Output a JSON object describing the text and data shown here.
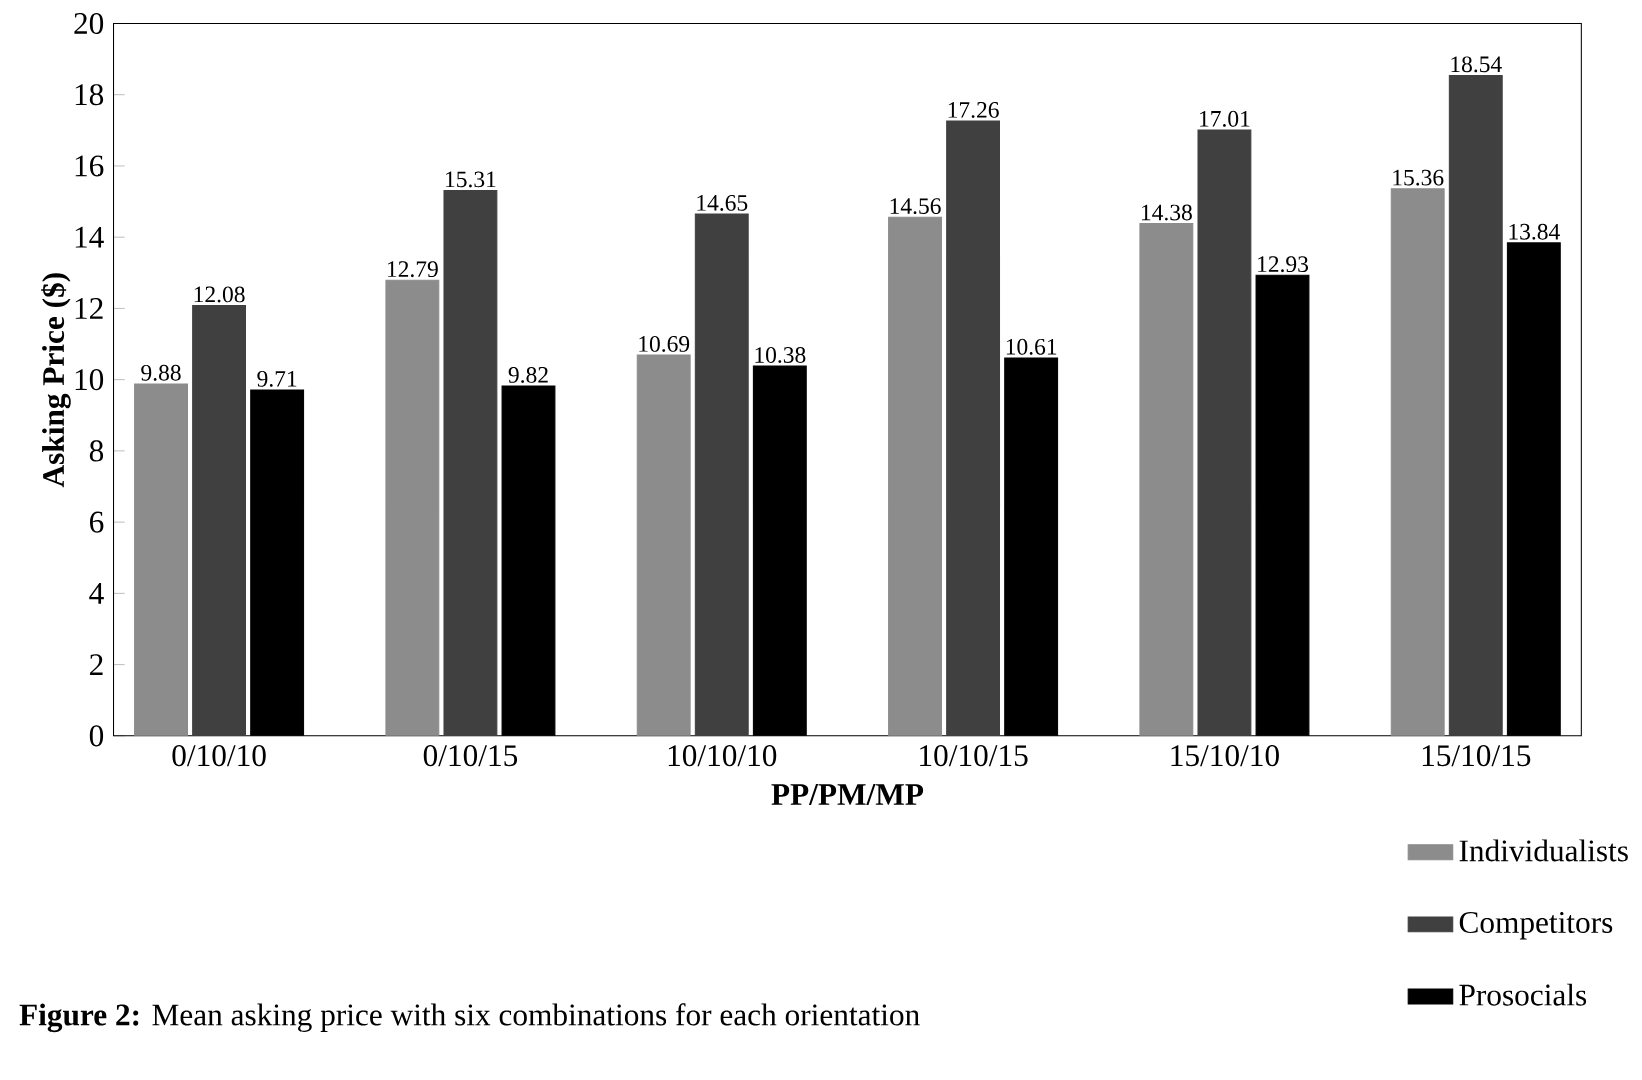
{
  "chart_data": {
    "type": "bar",
    "xlabel": "PP/PM/MP",
    "ylabel": "Asking Price ($)",
    "categories": [
      "0/10/10",
      "0/10/15",
      "10/10/10",
      "10/10/15",
      "15/10/10",
      "15/10/15"
    ],
    "series": [
      {
        "name": "Individualists",
        "color": "#8c8c8c",
        "values": [
          9.88,
          12.79,
          10.69,
          14.56,
          14.38,
          15.36
        ]
      },
      {
        "name": "Competitors",
        "color": "#404040",
        "values": [
          12.08,
          15.31,
          14.65,
          17.26,
          17.01,
          18.54
        ]
      },
      {
        "name": "Prosocials",
        "color": "#000000",
        "values": [
          9.71,
          9.82,
          10.38,
          10.61,
          12.93,
          13.84
        ]
      }
    ],
    "ylim": [
      0,
      20
    ],
    "yticks": [
      0,
      2,
      4,
      6,
      8,
      10,
      12,
      14,
      16,
      18,
      20
    ],
    "data_labels": true,
    "grid": false,
    "legend": "bottom right",
    "annotations": [
      "**Figure 2:** Mean asking price with six combinations for each orientation"
    ]
  }
}
